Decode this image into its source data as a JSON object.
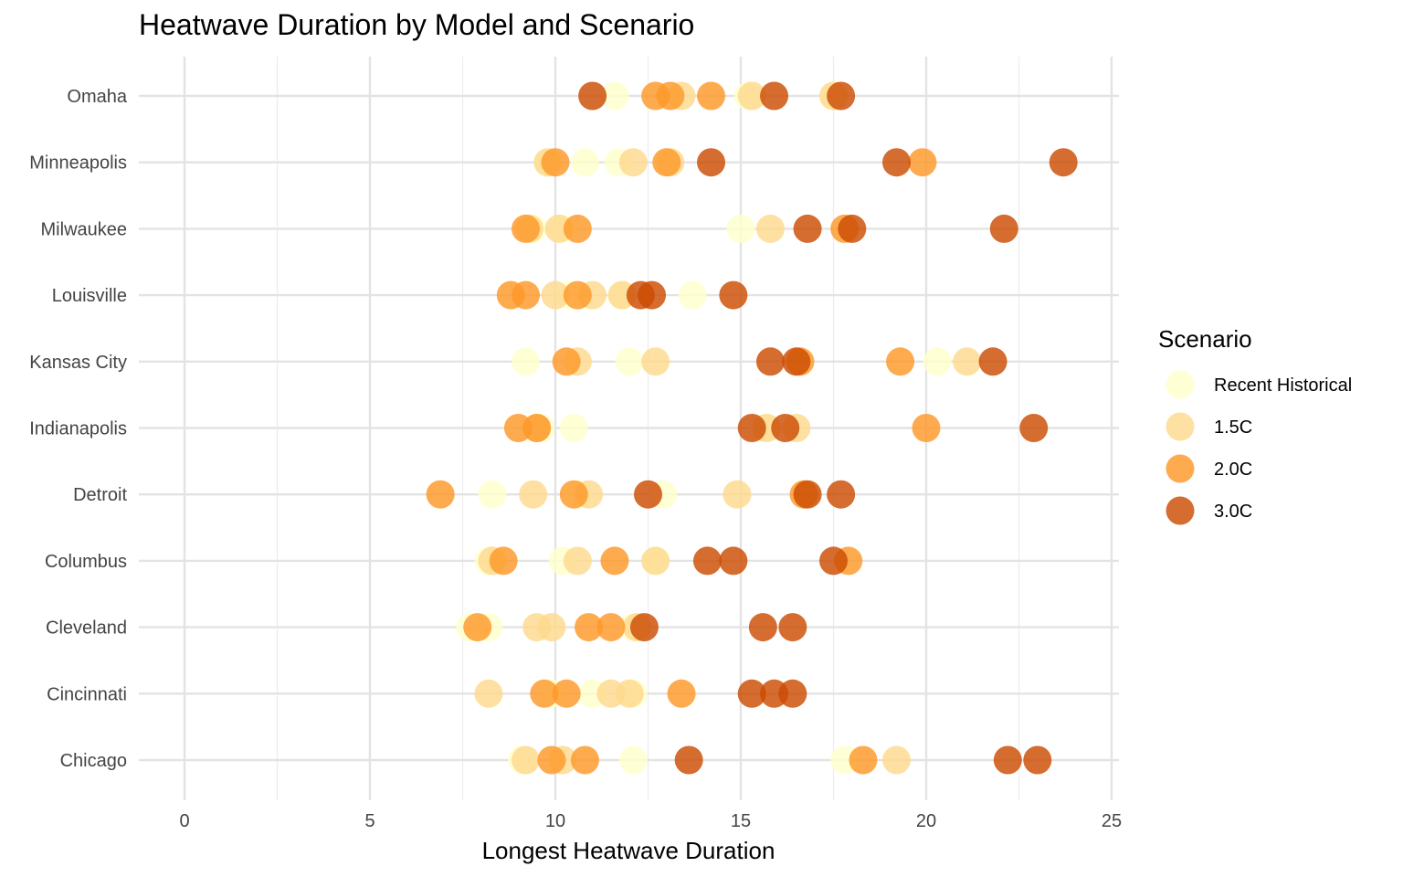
{
  "chart_data": {
    "type": "scatter",
    "title": "Heatwave Duration by Model and Scenario",
    "xlabel": "Longest Heatwave Duration",
    "ylabel": "",
    "xlim": [
      0,
      25
    ],
    "xticks": [
      0,
      5,
      10,
      15,
      20,
      25
    ],
    "grid": true,
    "legend_title": "Scenario",
    "legend_position": "right",
    "categories": [
      "Chicago",
      "Cincinnati",
      "Cleveland",
      "Columbus",
      "Detroit",
      "Indianapolis",
      "Kansas City",
      "Louisville",
      "Milwaukee",
      "Minneapolis",
      "Omaha"
    ],
    "series": [
      {
        "name": "Recent Historical",
        "color": "#FFFFCC",
        "points": [
          {
            "city": "Chicago",
            "x": [
              9.1,
              12.1,
              17.8
            ]
          },
          {
            "city": "Cincinnati",
            "x": [
              9.9,
              11.0,
              12.1
            ]
          },
          {
            "city": "Cleveland",
            "x": [
              7.7,
              8.2,
              12.1
            ]
          },
          {
            "city": "Columbus",
            "x": [
              8.2,
              10.2,
              12.7
            ]
          },
          {
            "city": "Detroit",
            "x": [
              8.3,
              10.6,
              12.9
            ]
          },
          {
            "city": "Indianapolis",
            "x": [
              9.6,
              10.5,
              15.6
            ]
          },
          {
            "city": "Kansas City",
            "x": [
              9.2,
              12.0,
              20.3
            ]
          },
          {
            "city": "Louisville",
            "x": [
              10.4,
              11.8,
              13.7
            ]
          },
          {
            "city": "Milwaukee",
            "x": [
              9.4,
              10.2,
              15.0
            ]
          },
          {
            "city": "Minneapolis",
            "x": [
              9.8,
              10.8,
              11.7
            ]
          },
          {
            "city": "Omaha",
            "x": [
              11.6,
              15.2,
              17.5
            ]
          }
        ]
      },
      {
        "name": "1.5C",
        "color": "#FED98E",
        "points": [
          {
            "city": "Chicago",
            "x": [
              9.2,
              10.2,
              19.2
            ]
          },
          {
            "city": "Cincinnati",
            "x": [
              8.2,
              11.5,
              12.0
            ]
          },
          {
            "city": "Cleveland",
            "x": [
              9.5,
              9.9,
              12.2
            ]
          },
          {
            "city": "Columbus",
            "x": [
              8.3,
              10.6,
              12.7
            ]
          },
          {
            "city": "Detroit",
            "x": [
              9.4,
              10.9,
              14.9
            ]
          },
          {
            "city": "Indianapolis",
            "x": [
              9.5,
              15.7,
              16.5
            ]
          },
          {
            "city": "Kansas City",
            "x": [
              10.6,
              12.7,
              21.1
            ]
          },
          {
            "city": "Louisville",
            "x": [
              10.0,
              11.0,
              11.8
            ]
          },
          {
            "city": "Milwaukee",
            "x": [
              9.3,
              10.1,
              15.8
            ]
          },
          {
            "city": "Minneapolis",
            "x": [
              9.8,
              12.1,
              13.1
            ]
          },
          {
            "city": "Omaha",
            "x": [
              13.4,
              15.3,
              17.5
            ]
          }
        ]
      },
      {
        "name": "2.0C",
        "color": "#FE9929",
        "points": [
          {
            "city": "Chicago",
            "x": [
              9.9,
              10.8,
              18.3
            ]
          },
          {
            "city": "Cincinnati",
            "x": [
              9.7,
              10.3,
              13.4
            ]
          },
          {
            "city": "Cleveland",
            "x": [
              7.9,
              10.9,
              11.5
            ]
          },
          {
            "city": "Columbus",
            "x": [
              8.6,
              11.6,
              17.9
            ]
          },
          {
            "city": "Detroit",
            "x": [
              6.9,
              10.5,
              16.7
            ]
          },
          {
            "city": "Indianapolis",
            "x": [
              9.0,
              9.5,
              20.0
            ]
          },
          {
            "city": "Kansas City",
            "x": [
              10.3,
              16.6,
              19.3
            ]
          },
          {
            "city": "Louisville",
            "x": [
              8.8,
              9.2,
              10.6
            ]
          },
          {
            "city": "Milwaukee",
            "x": [
              9.2,
              10.6,
              17.8
            ]
          },
          {
            "city": "Minneapolis",
            "x": [
              10.0,
              13.0,
              19.9
            ]
          },
          {
            "city": "Omaha",
            "x": [
              12.7,
              13.1,
              14.2
            ]
          }
        ]
      },
      {
        "name": "3.0C",
        "color": "#CC4C02",
        "points": [
          {
            "city": "Chicago",
            "x": [
              13.6,
              22.2,
              23.0
            ]
          },
          {
            "city": "Cincinnati",
            "x": [
              15.3,
              15.9,
              16.4
            ]
          },
          {
            "city": "Cleveland",
            "x": [
              12.4,
              15.6,
              16.4
            ]
          },
          {
            "city": "Columbus",
            "x": [
              14.1,
              14.8,
              17.5
            ]
          },
          {
            "city": "Detroit",
            "x": [
              12.5,
              16.8,
              17.7
            ]
          },
          {
            "city": "Indianapolis",
            "x": [
              15.3,
              16.2,
              22.9
            ]
          },
          {
            "city": "Kansas City",
            "x": [
              15.8,
              16.5,
              21.8
            ]
          },
          {
            "city": "Louisville",
            "x": [
              12.3,
              12.6,
              14.8
            ]
          },
          {
            "city": "Milwaukee",
            "x": [
              16.8,
              18.0,
              22.1
            ]
          },
          {
            "city": "Minneapolis",
            "x": [
              14.2,
              19.2,
              23.7
            ]
          },
          {
            "city": "Omaha",
            "x": [
              11.0,
              15.9,
              17.7
            ]
          }
        ]
      }
    ]
  }
}
